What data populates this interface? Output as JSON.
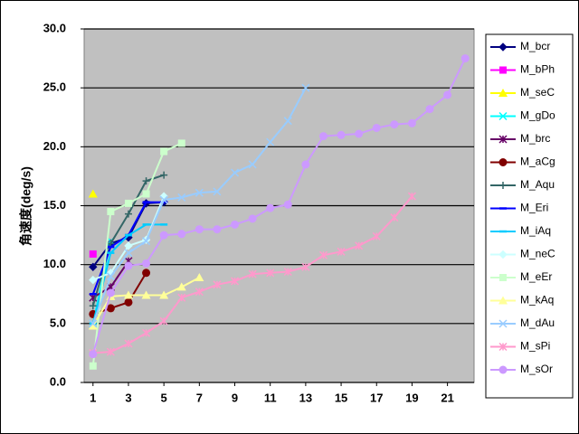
{
  "chart_data": {
    "type": "line",
    "y_label": "角速度(deg/s)",
    "x": [
      1,
      2,
      3,
      4,
      5,
      6,
      7,
      8,
      9,
      10,
      11,
      12,
      13,
      14,
      15,
      16,
      17,
      18,
      19,
      20,
      21,
      22
    ],
    "xlim": [
      0.5,
      22.5
    ],
    "xticks": [
      1,
      3,
      5,
      7,
      9,
      11,
      13,
      15,
      17,
      19,
      21
    ],
    "ylim": [
      0,
      30
    ],
    "yticks": [
      {
        "value": 0,
        "label": "0.0"
      },
      {
        "value": 5,
        "label": "5.0"
      },
      {
        "value": 10,
        "label": "10.0"
      },
      {
        "value": 15,
        "label": "15.0"
      },
      {
        "value": 20,
        "label": "20.0"
      },
      {
        "value": 25,
        "label": "25.0"
      },
      {
        "value": 30,
        "label": "30.0"
      }
    ],
    "grid": true,
    "legend": "right",
    "series": [
      {
        "name": "M_bcr",
        "color": "#000080",
        "marker": "diamond",
        "values": [
          9.8,
          11.8,
          12.3,
          15.2,
          15.3,
          null,
          null,
          null,
          null,
          null,
          null,
          null,
          null,
          null,
          null,
          null,
          null,
          null,
          null,
          null,
          null,
          null
        ]
      },
      {
        "name": "M_bPh",
        "color": "#ff00ff",
        "marker": "square",
        "values": [
          10.9,
          null,
          null,
          null,
          null,
          null,
          null,
          null,
          null,
          null,
          null,
          null,
          null,
          null,
          null,
          null,
          null,
          null,
          null,
          null,
          null,
          null
        ]
      },
      {
        "name": "M_seC",
        "color": "#ffff00",
        "marker": "triangle",
        "values": [
          16.0,
          null,
          null,
          null,
          null,
          null,
          null,
          null,
          null,
          null,
          null,
          null,
          null,
          null,
          null,
          null,
          null,
          null,
          null,
          null,
          null,
          null
        ]
      },
      {
        "name": "M_gDo",
        "color": "#00ffff",
        "marker": "x",
        "values": [
          5.0,
          12.0,
          null,
          null,
          null,
          null,
          null,
          null,
          null,
          null,
          null,
          null,
          null,
          null,
          null,
          null,
          null,
          null,
          null,
          null,
          null,
          null
        ]
      },
      {
        "name": "M_brc",
        "color": "#660066",
        "marker": "star",
        "values": [
          7.2,
          8.1,
          10.3,
          null,
          null,
          null,
          null,
          null,
          null,
          null,
          null,
          null,
          null,
          null,
          null,
          null,
          null,
          null,
          null,
          null,
          null,
          null
        ]
      },
      {
        "name": "M_aCg",
        "color": "#800000",
        "marker": "circle",
        "values": [
          5.8,
          6.3,
          6.8,
          9.3,
          null,
          null,
          null,
          null,
          null,
          null,
          null,
          null,
          null,
          null,
          null,
          null,
          null,
          null,
          null,
          null,
          null,
          null
        ]
      },
      {
        "name": "M_Aqu",
        "color": "#336666",
        "marker": "plus",
        "values": [
          6.5,
          11.8,
          14.3,
          17.1,
          17.6,
          null,
          null,
          null,
          null,
          null,
          null,
          null,
          null,
          null,
          null,
          null,
          null,
          null,
          null,
          null,
          null,
          null
        ]
      },
      {
        "name": "M_Eri",
        "color": "#0000ff",
        "marker": "dash",
        "values": [
          7.5,
          11.5,
          12.5,
          15.3,
          15.3,
          null,
          null,
          null,
          null,
          null,
          null,
          null,
          null,
          null,
          null,
          null,
          null,
          null,
          null,
          null,
          null,
          null
        ]
      },
      {
        "name": "M_iAq",
        "color": "#00ccff",
        "marker": "dash",
        "values": [
          5.0,
          11.0,
          12.5,
          13.4,
          13.4,
          null,
          null,
          null,
          null,
          null,
          null,
          null,
          null,
          null,
          null,
          null,
          null,
          null,
          null,
          null,
          null,
          null
        ]
      },
      {
        "name": "M_neC",
        "color": "#ccffff",
        "marker": "diamond",
        "values": [
          8.7,
          9.3,
          11.6,
          12.1,
          15.8,
          null,
          null,
          null,
          null,
          null,
          null,
          null,
          null,
          null,
          null,
          null,
          null,
          null,
          null,
          null,
          null,
          null
        ]
      },
      {
        "name": "M_eEr",
        "color": "#ccffcc",
        "marker": "square",
        "values": [
          1.4,
          14.5,
          15.2,
          16.0,
          19.6,
          20.3,
          null,
          null,
          null,
          null,
          null,
          null,
          null,
          null,
          null,
          null,
          null,
          null,
          null,
          null,
          null,
          null
        ]
      },
      {
        "name": "M_kAq",
        "color": "#ffff99",
        "marker": "triangle",
        "values": [
          4.8,
          7.3,
          7.4,
          7.4,
          7.4,
          8.1,
          8.9,
          null,
          null,
          null,
          null,
          null,
          null,
          null,
          null,
          null,
          null,
          null,
          null,
          null,
          null,
          null
        ]
      },
      {
        "name": "M_dAu",
        "color": "#99ccff",
        "marker": "x",
        "values": [
          5.0,
          9.0,
          11.0,
          12.0,
          15.5,
          15.7,
          16.1,
          16.2,
          17.8,
          18.5,
          20.4,
          22.2,
          25.0,
          null,
          null,
          null,
          null,
          null,
          null,
          null,
          null,
          null
        ]
      },
      {
        "name": "M_sPi",
        "color": "#ff99cc",
        "marker": "star",
        "values": [
          2.5,
          2.6,
          3.3,
          4.2,
          5.2,
          7.2,
          7.7,
          8.3,
          8.6,
          9.2,
          9.3,
          9.4,
          9.8,
          10.8,
          11.1,
          11.6,
          12.4,
          14.0,
          15.8,
          null,
          null,
          null
        ]
      },
      {
        "name": "M_sOr",
        "color": "#cc99ff",
        "marker": "circle",
        "values": [
          2.4,
          7.6,
          9.9,
          10.1,
          12.5,
          12.6,
          13.0,
          13.0,
          13.4,
          13.9,
          14.8,
          15.1,
          18.5,
          20.9,
          21.0,
          21.1,
          21.6,
          21.9,
          22.0,
          23.2,
          24.4,
          27.5
        ]
      }
    ]
  }
}
